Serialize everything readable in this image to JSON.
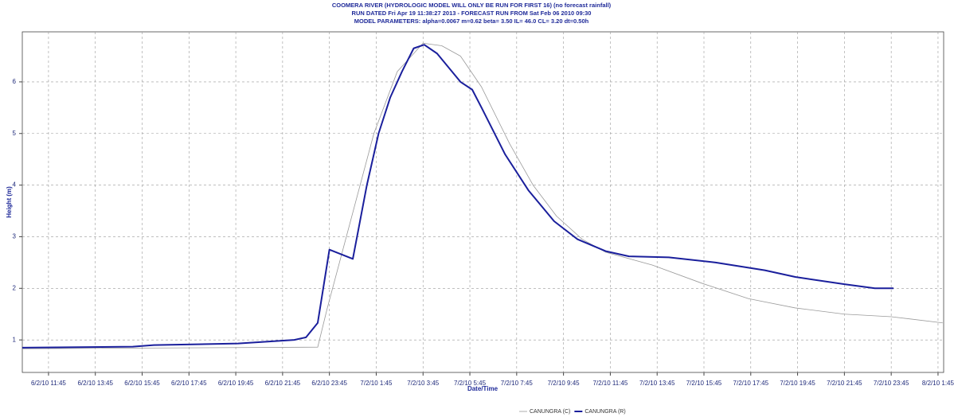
{
  "chart_data": {
    "type": "line",
    "title": "COOMERA RIVER (HYDROLOGIC MODEL WILL ONLY BE RUN FOR FIRST 16) (no forecast rainfall)",
    "subtitle": "RUN DATED Fri Apr 19 11:38:27 2013 - FORECAST RUN FROM Sat Feb 06 2010 09:30",
    "subtitle2": "MODEL PARAMETERS: alpha=0.0067 m=0.62 beta= 3.50 IL= 46.0 CL= 3.20 dt=0.50h",
    "xlabel": "Date/Time",
    "ylabel": "Height (m)",
    "xlim": [
      -1.12,
      38.24
    ],
    "ylim": [
      0.37,
      6.97
    ],
    "xticks": [
      {
        "value": 0,
        "label": "6/2/10 11:45"
      },
      {
        "value": 2,
        "label": "6/2/10 13:45"
      },
      {
        "value": 4,
        "label": "6/2/10 15:45"
      },
      {
        "value": 6,
        "label": "6/2/10 17:45"
      },
      {
        "value": 8,
        "label": "6/2/10 19:45"
      },
      {
        "value": 10,
        "label": "6/2/10 21:45"
      },
      {
        "value": 12,
        "label": "6/2/10 23:45"
      },
      {
        "value": 14,
        "label": "7/2/10 1:45"
      },
      {
        "value": 16,
        "label": "7/2/10 3:45"
      },
      {
        "value": 18,
        "label": "7/2/10 5:45"
      },
      {
        "value": 20,
        "label": "7/2/10 7:45"
      },
      {
        "value": 22,
        "label": "7/2/10 9:45"
      },
      {
        "value": 24,
        "label": "7/2/10 11:45"
      },
      {
        "value": 26,
        "label": "7/2/10 13:45"
      },
      {
        "value": 28,
        "label": "7/2/10 15:45"
      },
      {
        "value": 30,
        "label": "7/2/10 17:45"
      },
      {
        "value": 32,
        "label": "7/2/10 19:45"
      },
      {
        "value": 34,
        "label": "7/2/10 21:45"
      },
      {
        "value": 36,
        "label": "7/2/10 23:45"
      },
      {
        "value": 38,
        "label": "8/2/10 1:45"
      }
    ],
    "yticks": [
      1,
      2,
      3,
      4,
      5,
      6
    ],
    "grid": true,
    "legend": "bottom",
    "series": [
      {
        "name": "CANUNGRA (C)",
        "color": "#9a9a9a",
        "width": 0.8,
        "x": [
          -1.12,
          11.5,
          11.9,
          12.9,
          13.9,
          14.9,
          16,
          16.8,
          17.6,
          18.5,
          19.7,
          20.7,
          21.7,
          22.8,
          23.8,
          25.8,
          27.9,
          29.9,
          31.9,
          34,
          36,
          38.2
        ],
        "values": [
          0.83,
          0.86,
          1.6,
          3.3,
          5.0,
          6.2,
          6.75,
          6.7,
          6.5,
          5.9,
          4.8,
          4.0,
          3.4,
          2.95,
          2.7,
          2.45,
          2.1,
          1.8,
          1.62,
          1.5,
          1.45,
          1.33
        ]
      },
      {
        "name": "CANUNGRA (R)",
        "color": "#1a1f9c",
        "width": 2,
        "x": [
          -1.12,
          3.6,
          4.5,
          8.1,
          10.5,
          11,
          11.5,
          12,
          13,
          13.6,
          14.1,
          14.6,
          15.1,
          15.6,
          16.05,
          16.6,
          17.6,
          18.1,
          18.5,
          19.5,
          20.5,
          21.6,
          22.6,
          23.8,
          24.8,
          26.5,
          28.5,
          30.6,
          31.9,
          34,
          35.3,
          36.1
        ],
        "values": [
          0.85,
          0.87,
          0.9,
          0.93,
          1.0,
          1.05,
          1.33,
          2.75,
          2.57,
          4.0,
          5.0,
          5.7,
          6.2,
          6.65,
          6.72,
          6.55,
          6.0,
          5.85,
          5.5,
          4.6,
          3.9,
          3.3,
          2.95,
          2.72,
          2.62,
          2.6,
          2.5,
          2.35,
          2.22,
          2.08,
          2.0,
          2.0
        ]
      }
    ]
  }
}
